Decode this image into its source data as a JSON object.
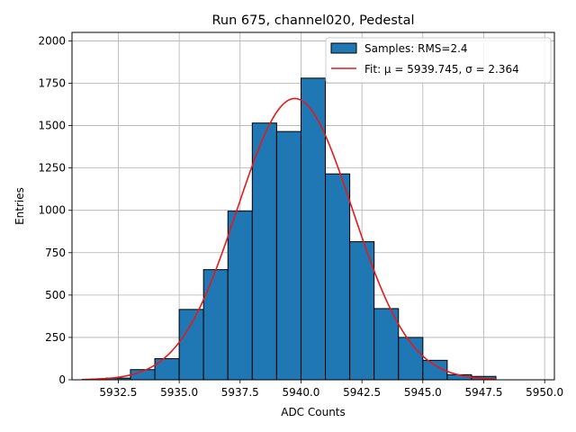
{
  "chart_data": {
    "type": "bar",
    "title": "Run 675, channel020, Pedestal",
    "xlabel": "ADC Counts",
    "ylabel": "Entries",
    "xlim": [
      5930.6,
      5950.4
    ],
    "ylim": [
      0,
      2050
    ],
    "grid": true,
    "legend_position": "top-right",
    "xticks": [
      5932.5,
      5935.0,
      5937.5,
      5940.0,
      5942.5,
      5945.0,
      5947.5,
      5950.0
    ],
    "xtick_labels": [
      "5932.5",
      "5935.0",
      "5937.5",
      "5940.0",
      "5942.5",
      "5945.0",
      "5947.5",
      "5950.0"
    ],
    "yticks": [
      0,
      250,
      500,
      750,
      1000,
      1250,
      1500,
      1750,
      2000
    ],
    "ytick_labels": [
      "0",
      "250",
      "500",
      "750",
      "1000",
      "1250",
      "1500",
      "1750",
      "2000"
    ],
    "bin_width": 1,
    "bins": [
      {
        "left": 5932,
        "value": 10
      },
      {
        "left": 5933,
        "value": 60
      },
      {
        "left": 5934,
        "value": 125
      },
      {
        "left": 5935,
        "value": 415
      },
      {
        "left": 5936,
        "value": 650
      },
      {
        "left": 5937,
        "value": 995
      },
      {
        "left": 5938,
        "value": 1515
      },
      {
        "left": 5939,
        "value": 1465
      },
      {
        "left": 5940,
        "value": 1780
      },
      {
        "left": 5941,
        "value": 1215
      },
      {
        "left": 5942,
        "value": 815
      },
      {
        "left": 5943,
        "value": 420
      },
      {
        "left": 5944,
        "value": 250
      },
      {
        "left": 5945,
        "value": 115
      },
      {
        "left": 5946,
        "value": 30
      },
      {
        "left": 5947,
        "value": 20
      }
    ],
    "fit": {
      "mu": 5939.745,
      "sigma": 2.364,
      "amplitude": 1660,
      "x_range": [
        5931.0,
        5948.0
      ]
    },
    "series": [
      {
        "name": "Samples: RMS=2.4",
        "kind": "histogram",
        "color": "#1f77b4"
      },
      {
        "name": "Fit: μ = 5939.745, σ = 2.364",
        "kind": "line",
        "color": "#e41a1c"
      }
    ]
  }
}
